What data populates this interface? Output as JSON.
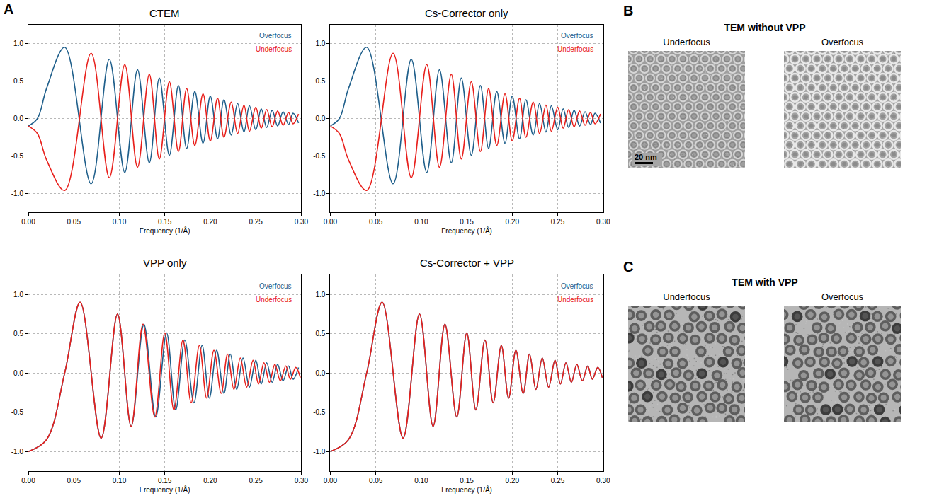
{
  "panel_a": {
    "letter": "A"
  },
  "chart_data": [
    {
      "type": "line",
      "title": "CTEM",
      "x_label": "Frequency (1/Å)",
      "xlim": [
        0,
        0.3
      ],
      "xticks": [
        {
          "value": 0,
          "label": "0.00"
        },
        0.05,
        {
          "value": 0.1,
          "label": "0.10"
        },
        0.15,
        {
          "value": 0.2,
          "label": "0.20"
        },
        0.25,
        {
          "value": 0.3,
          "label": "0.30"
        }
      ],
      "ylim": [
        -1.25,
        1.25
      ],
      "yticks": [
        {
          "value": -1,
          "label": "-1.0"
        },
        -0.5,
        {
          "value": 0,
          "label": "0.0"
        },
        0.5,
        {
          "value": 1,
          "label": "1.0"
        }
      ],
      "grid": true,
      "legend": "top right",
      "series": [
        {
          "name": "Overfocus",
          "color": "#1f5f8b",
          "x": [
            0,
            0.01,
            0.02,
            0.04,
            0.069,
            0.089,
            0.106,
            0.12,
            0.133,
            0.144,
            0.155,
            0.165,
            0.174,
            0.183,
            0.192,
            0.2,
            0.208,
            0.215,
            0.223,
            0.23,
            0.237,
            0.243,
            0.25,
            0.256,
            0.262,
            0.268,
            0.274,
            0.28,
            0.286,
            0.291,
            0.297
          ],
          "values": [
            -0.1,
            0.0,
            0.4,
            0.95,
            -0.87,
            0.79,
            -0.72,
            0.65,
            -0.59,
            0.54,
            -0.49,
            0.44,
            -0.4,
            0.36,
            -0.33,
            0.3,
            -0.27,
            0.25,
            -0.22,
            0.2,
            -0.18,
            0.17,
            -0.15,
            0.13,
            -0.12,
            0.11,
            -0.1,
            0.09,
            -0.08,
            0.07,
            -0.06
          ]
        },
        {
          "name": "Underfocus",
          "color": "#e8201c",
          "x": [
            0,
            0.01,
            0.02,
            0.04,
            0.069,
            0.089,
            0.106,
            0.12,
            0.133,
            0.144,
            0.155,
            0.165,
            0.174,
            0.183,
            0.192,
            0.2,
            0.208,
            0.215,
            0.223,
            0.23,
            0.237,
            0.243,
            0.25,
            0.256,
            0.262,
            0.268,
            0.274,
            0.28,
            0.286,
            0.291,
            0.297
          ],
          "values": [
            -0.1,
            -0.2,
            -0.55,
            -0.96,
            0.87,
            -0.79,
            0.72,
            -0.65,
            0.59,
            -0.54,
            0.49,
            -0.44,
            0.4,
            -0.36,
            0.33,
            -0.3,
            0.27,
            -0.25,
            0.22,
            -0.2,
            0.18,
            -0.17,
            0.15,
            -0.13,
            0.12,
            -0.11,
            0.1,
            -0.09,
            0.08,
            -0.07,
            0.06
          ]
        }
      ]
    },
    {
      "type": "line",
      "title": "Cs-Corrector only",
      "x_label": "Frequency (1/Å)",
      "xlim": [
        0,
        0.3
      ],
      "xticks": [
        {
          "value": 0,
          "label": "0.00"
        },
        0.05,
        {
          "value": 0.1,
          "label": "0.10"
        },
        0.15,
        {
          "value": 0.2,
          "label": "0.20"
        },
        0.25,
        {
          "value": 0.3,
          "label": "0.30"
        }
      ],
      "ylim": [
        -1.25,
        1.25
      ],
      "yticks": [
        {
          "value": -1,
          "label": "-1.0"
        },
        -0.5,
        {
          "value": 0,
          "label": "0.0"
        },
        0.5,
        {
          "value": 1,
          "label": "1.0"
        }
      ],
      "grid": true,
      "legend": "top right",
      "series": [
        {
          "name": "Overfocus",
          "color": "#1f5f8b",
          "x": [
            0,
            0.01,
            0.02,
            0.04,
            0.069,
            0.089,
            0.106,
            0.12,
            0.133,
            0.144,
            0.155,
            0.165,
            0.174,
            0.183,
            0.192,
            0.2,
            0.208,
            0.215,
            0.223,
            0.23,
            0.237,
            0.243,
            0.25,
            0.256,
            0.262,
            0.268,
            0.274,
            0.28,
            0.286,
            0.291,
            0.297
          ],
          "values": [
            -0.1,
            0.0,
            0.4,
            0.95,
            -0.87,
            0.79,
            -0.72,
            0.65,
            -0.59,
            0.54,
            -0.49,
            0.44,
            -0.4,
            0.36,
            -0.33,
            0.3,
            -0.27,
            0.25,
            -0.22,
            0.2,
            -0.18,
            0.17,
            -0.15,
            0.13,
            -0.12,
            0.11,
            -0.1,
            0.09,
            -0.08,
            0.07,
            -0.06
          ]
        },
        {
          "name": "Underfocus",
          "color": "#e8201c",
          "x": [
            0,
            0.01,
            0.02,
            0.04,
            0.069,
            0.089,
            0.106,
            0.12,
            0.133,
            0.144,
            0.155,
            0.165,
            0.174,
            0.183,
            0.192,
            0.2,
            0.208,
            0.215,
            0.223,
            0.23,
            0.237,
            0.243,
            0.25,
            0.256,
            0.262,
            0.268,
            0.274,
            0.28,
            0.286,
            0.291,
            0.297
          ],
          "values": [
            -0.1,
            -0.2,
            -0.55,
            -0.96,
            0.87,
            -0.79,
            0.72,
            -0.65,
            0.59,
            -0.54,
            0.49,
            -0.44,
            0.4,
            -0.36,
            0.33,
            -0.3,
            0.27,
            -0.25,
            0.22,
            -0.2,
            0.18,
            -0.17,
            0.15,
            -0.13,
            0.12,
            -0.11,
            0.1,
            -0.09,
            0.08,
            -0.07,
            0.06
          ]
        }
      ]
    },
    {
      "type": "line",
      "title": "VPP only",
      "x_label": "Frequency (1/Å)",
      "xlim": [
        0,
        0.3
      ],
      "xticks": [
        {
          "value": 0,
          "label": "0.00"
        },
        0.05,
        {
          "value": 0.1,
          "label": "0.10"
        },
        0.15,
        {
          "value": 0.2,
          "label": "0.20"
        },
        0.25,
        {
          "value": 0.3,
          "label": "0.30"
        }
      ],
      "ylim": [
        -1.25,
        1.25
      ],
      "yticks": [
        {
          "value": -1,
          "label": "-1.0"
        },
        -0.5,
        {
          "value": 0,
          "label": "0.0"
        },
        0.5,
        {
          "value": 1,
          "label": "1.0"
        }
      ],
      "grid": true,
      "legend": "top right",
      "series": [
        {
          "name": "Overfocus",
          "color": "#1f5f8b",
          "x": [
            0,
            0.02,
            0.04,
            0.057,
            0.08,
            0.098,
            0.113,
            0.127,
            0.14,
            0.152,
            0.162,
            0.172,
            0.182,
            0.191,
            0.199,
            0.207,
            0.215,
            0.222,
            0.229,
            0.236,
            0.243,
            0.25,
            0.256,
            0.262,
            0.268,
            0.274,
            0.28,
            0.286,
            0.291,
            0.297
          ],
          "values": [
            -1.0,
            -0.85,
            0.0,
            0.9,
            -0.83,
            0.75,
            -0.68,
            0.62,
            -0.56,
            0.51,
            -0.47,
            0.42,
            -0.38,
            0.35,
            -0.32,
            0.29,
            -0.26,
            0.24,
            -0.21,
            0.19,
            -0.18,
            0.16,
            -0.14,
            0.13,
            -0.12,
            0.11,
            -0.1,
            0.09,
            -0.08,
            0.07
          ]
        },
        {
          "name": "Underfocus",
          "color": "#e8201c",
          "x": [
            0,
            0.02,
            0.04,
            0.057,
            0.08,
            0.098,
            0.113,
            0.126,
            0.139,
            0.15,
            0.16,
            0.17,
            0.179,
            0.188,
            0.196,
            0.204,
            0.212,
            0.219,
            0.226,
            0.233,
            0.24,
            0.247,
            0.253,
            0.259,
            0.265,
            0.271,
            0.277,
            0.283,
            0.288,
            0.294,
            0.299
          ],
          "values": [
            -1.0,
            -0.85,
            0.0,
            0.9,
            -0.83,
            0.75,
            -0.68,
            0.62,
            -0.56,
            0.51,
            -0.47,
            0.42,
            -0.38,
            0.35,
            -0.32,
            0.29,
            -0.26,
            0.24,
            -0.21,
            0.19,
            -0.18,
            0.16,
            -0.14,
            0.13,
            -0.12,
            0.11,
            -0.1,
            0.09,
            -0.08,
            0.07,
            -0.06
          ]
        }
      ]
    },
    {
      "type": "line",
      "title": "Cs-Corrector + VPP",
      "x_label": "Frequency (1/Å)",
      "xlim": [
        0,
        0.3
      ],
      "xticks": [
        {
          "value": 0,
          "label": "0.00"
        },
        0.05,
        {
          "value": 0.1,
          "label": "0.10"
        },
        0.15,
        {
          "value": 0.2,
          "label": "0.20"
        },
        0.25,
        {
          "value": 0.3,
          "label": "0.30"
        }
      ],
      "ylim": [
        -1.25,
        1.25
      ],
      "yticks": [
        {
          "value": -1,
          "label": "-1.0"
        },
        -0.5,
        {
          "value": 0,
          "label": "0.0"
        },
        0.5,
        {
          "value": 1,
          "label": "1.0"
        }
      ],
      "grid": true,
      "legend": "top right",
      "series": [
        {
          "name": "Overfocus",
          "color": "#1f5f8b",
          "x": [
            0,
            0.02,
            0.04,
            0.057,
            0.08,
            0.098,
            0.113,
            0.126,
            0.139,
            0.15,
            0.16,
            0.17,
            0.179,
            0.188,
            0.196,
            0.204,
            0.212,
            0.219,
            0.226,
            0.233,
            0.24,
            0.247,
            0.253,
            0.259,
            0.265,
            0.271,
            0.277,
            0.283,
            0.288,
            0.294,
            0.299
          ],
          "values": [
            -1.0,
            -0.85,
            0.0,
            0.9,
            -0.83,
            0.75,
            -0.68,
            0.62,
            -0.56,
            0.51,
            -0.47,
            0.42,
            -0.38,
            0.35,
            -0.32,
            0.29,
            -0.26,
            0.24,
            -0.21,
            0.19,
            -0.18,
            0.16,
            -0.14,
            0.13,
            -0.12,
            0.11,
            -0.1,
            0.09,
            -0.08,
            0.07,
            -0.06
          ]
        },
        {
          "name": "Underfocus",
          "color": "#e8201c",
          "x": [
            0,
            0.02,
            0.04,
            0.057,
            0.08,
            0.098,
            0.113,
            0.126,
            0.139,
            0.15,
            0.16,
            0.17,
            0.179,
            0.188,
            0.196,
            0.204,
            0.212,
            0.219,
            0.226,
            0.233,
            0.24,
            0.247,
            0.253,
            0.259,
            0.265,
            0.271,
            0.277,
            0.283,
            0.288,
            0.294,
            0.299
          ],
          "values": [
            -1.0,
            -0.85,
            0.0,
            0.9,
            -0.83,
            0.75,
            -0.68,
            0.62,
            -0.56,
            0.51,
            -0.47,
            0.42,
            -0.38,
            0.35,
            -0.32,
            0.29,
            -0.26,
            0.24,
            -0.21,
            0.19,
            -0.18,
            0.16,
            -0.14,
            0.13,
            -0.12,
            0.11,
            -0.1,
            0.09,
            -0.08,
            0.07,
            -0.06
          ]
        }
      ]
    }
  ],
  "panel_b": {
    "letter": "B",
    "title": "TEM without VPP",
    "images": [
      "Underfocus",
      "Overfocus"
    ],
    "scale_bar": "20 nm"
  },
  "panel_c": {
    "letter": "C",
    "title": "TEM with VPP",
    "images": [
      "Underfocus",
      "Overfocus"
    ]
  }
}
